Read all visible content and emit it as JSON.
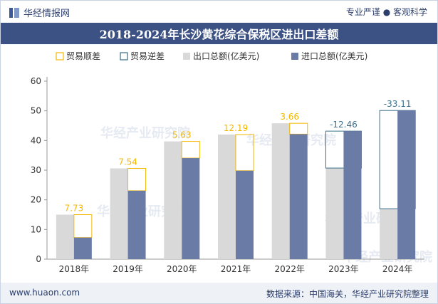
{
  "header": {
    "brand": "华经情报网",
    "slogan": "专业严谨 ● 客观科学"
  },
  "title": "2018-2024年长沙黄花综合保税区进出口差额",
  "footer": {
    "website": "www.huaon.com",
    "source": "数据来源：中国海关，华经产业研究院整理"
  },
  "watermark": "华经产业研究院",
  "colors": {
    "export": "#d9d9d9",
    "import": "#6a7ba6",
    "surplus": "#f5b800",
    "deficit": "#3a6f8c",
    "title_bg": "#3c5285"
  },
  "chart_data": {
    "type": "bar",
    "categories": [
      "2018年",
      "2019年",
      "2020年",
      "2021年",
      "2022年",
      "2023年",
      "2024年"
    ],
    "series": [
      {
        "name": "出口总额(亿美元)",
        "values": [
          15,
          30.6,
          39.7,
          42,
          45.8,
          30.7,
          17
        ]
      },
      {
        "name": "进口总额(亿美元)",
        "values": [
          7.27,
          23.06,
          34.07,
          29.81,
          42.14,
          43.16,
          50.11
        ]
      }
    ],
    "balance": {
      "labels": [
        "7.73",
        "7.54",
        "5.63",
        "12.19",
        "3.66",
        "-12.46",
        "-33.11"
      ]
    },
    "legend": [
      "贸易顺差",
      "贸易逆差",
      "出口总额(亿美元)",
      "进口总额(亿美元)"
    ],
    "legend_position": "top",
    "ylim": [
      0,
      60
    ],
    "yticks": [
      "0",
      "10",
      "20",
      "30",
      "40",
      "50",
      "60"
    ],
    "grid": false
  }
}
